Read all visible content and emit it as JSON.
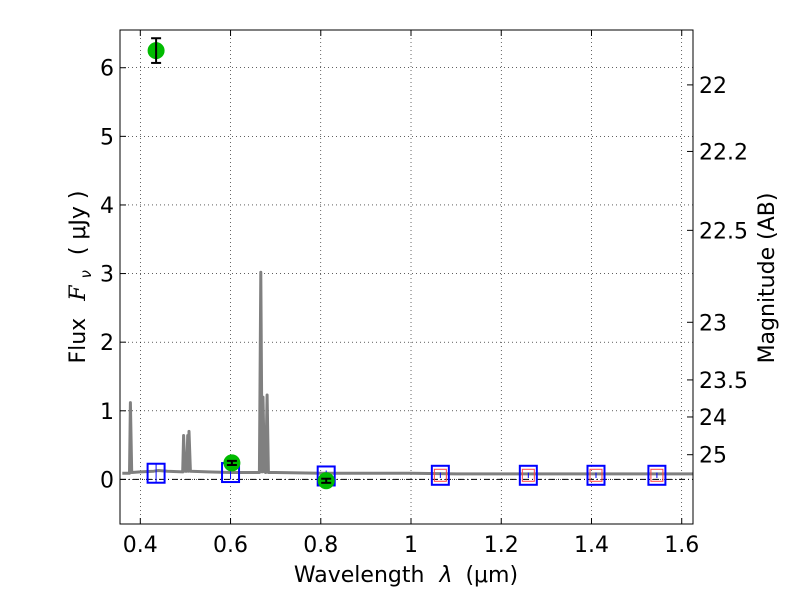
{
  "chart_data": {
    "type": "scatter",
    "xlabel_pre": "Wavelength",
    "xlabel_lambda": "λ",
    "xlabel_unit": "(μm)",
    "ylabel_pre": "Flux",
    "ylabel_F": "F",
    "ylabel_nu": "ν",
    "ylabel_unit": "( μJy )",
    "y2label": "Magnitude (AB)",
    "xlim": [
      0.355,
      1.625
    ],
    "ylim": [
      -0.65,
      6.55
    ],
    "xticks": [
      0.4,
      0.6,
      0.8,
      1.0,
      1.2,
      1.4,
      1.6
    ],
    "xtick_labels": [
      "0.4",
      "0.6",
      "0.8",
      "1",
      "1.2",
      "1.4",
      "1.6"
    ],
    "yticks": [
      0,
      1,
      2,
      3,
      4,
      5,
      6
    ],
    "ytick_labels": [
      "0",
      "1",
      "2",
      "3",
      "4",
      "5",
      "6"
    ],
    "mag_ticks": [
      {
        "label": "22",
        "flux": 5.75
      },
      {
        "label": "22.2",
        "flux": 4.78
      },
      {
        "label": "22.5",
        "flux": 3.63
      },
      {
        "label": "23",
        "flux": 2.29
      },
      {
        "label": "23.5",
        "flux": 1.45
      },
      {
        "label": "24",
        "flux": 0.91
      },
      {
        "label": "25",
        "flux": 0.36
      }
    ],
    "grid": true,
    "colors": {
      "spectrum": "#808080",
      "observed": "#00bb00",
      "model": "#0000ff",
      "alt_model": "#ff4444",
      "zero_line": "#000000"
    },
    "spectrum": [
      [
        0.36,
        0.09
      ],
      [
        0.376,
        0.09
      ],
      [
        0.378,
        1.12
      ],
      [
        0.381,
        0.1
      ],
      [
        0.4,
        0.11
      ],
      [
        0.43,
        0.12
      ],
      [
        0.44,
        0.13
      ],
      [
        0.46,
        0.12
      ],
      [
        0.494,
        0.11
      ],
      [
        0.496,
        0.64
      ],
      [
        0.499,
        0.12
      ],
      [
        0.503,
        0.12
      ],
      [
        0.505,
        0.64
      ],
      [
        0.507,
        0.12
      ],
      [
        0.508,
        0.7
      ],
      [
        0.511,
        0.12
      ],
      [
        0.55,
        0.11
      ],
      [
        0.6,
        0.1
      ],
      [
        0.65,
        0.1
      ],
      [
        0.664,
        0.1
      ],
      [
        0.667,
        3.02
      ],
      [
        0.67,
        0.11
      ],
      [
        0.672,
        1.2
      ],
      [
        0.675,
        0.11
      ],
      [
        0.678,
        0.1
      ],
      [
        0.681,
        1.23
      ],
      [
        0.684,
        0.1
      ],
      [
        0.7,
        0.1
      ],
      [
        0.8,
        0.09
      ],
      [
        0.9,
        0.09
      ],
      [
        1.0,
        0.09
      ],
      [
        1.1,
        0.08
      ],
      [
        1.2,
        0.08
      ],
      [
        1.3,
        0.08
      ],
      [
        1.4,
        0.08
      ],
      [
        1.5,
        0.08
      ],
      [
        1.625,
        0.08
      ]
    ],
    "observed": [
      {
        "x": 0.435,
        "y": 6.25,
        "err": 0.18
      },
      {
        "x": 0.603,
        "y": 0.24,
        "err": 0.03
      },
      {
        "x": 0.812,
        "y": -0.02,
        "err": 0.03
      }
    ],
    "model_boxes": [
      {
        "x": 0.435,
        "y": 0.09,
        "err": 0.13
      },
      {
        "x": 0.6,
        "y": 0.1,
        "err": 0.1
      },
      {
        "x": 0.812,
        "y": 0.05,
        "err": 0.08
      },
      {
        "x": 1.065,
        "y": 0.06,
        "err": 0.04
      },
      {
        "x": 1.26,
        "y": 0.06,
        "err": 0.04
      },
      {
        "x": 1.41,
        "y": 0.06,
        "err": 0.04
      },
      {
        "x": 1.545,
        "y": 0.06,
        "err": 0.04
      }
    ],
    "alt_boxes": [
      {
        "x": 1.065,
        "y": 0.06
      },
      {
        "x": 1.26,
        "y": 0.06
      },
      {
        "x": 1.41,
        "y": 0.06
      },
      {
        "x": 1.545,
        "y": 0.06
      }
    ]
  }
}
